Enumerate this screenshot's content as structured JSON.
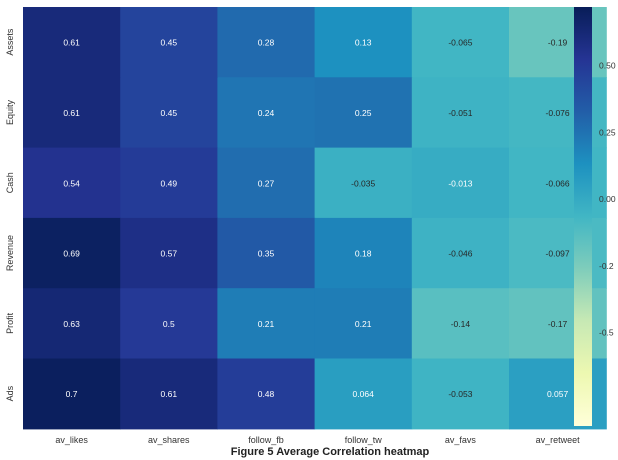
{
  "caption": "Figure 5 Average Correlation heatmap",
  "chart_data": {
    "type": "heatmap",
    "rows": [
      "Assets",
      "Equity",
      "Cash",
      "Revenue",
      "Profit",
      "Ads"
    ],
    "columns": [
      "av_likes",
      "av_shares",
      "follow_fb",
      "follow_tw",
      "av_favs",
      "av_retweet"
    ],
    "values": [
      [
        0.61,
        0.45,
        0.28,
        0.13,
        -0.065,
        -0.19
      ],
      [
        0.61,
        0.45,
        0.24,
        0.25,
        -0.051,
        -0.076
      ],
      [
        0.54,
        0.49,
        0.27,
        -0.035,
        -0.013,
        -0.066
      ],
      [
        0.69,
        0.57,
        0.35,
        0.18,
        -0.046,
        -0.097
      ],
      [
        0.63,
        0.5,
        0.21,
        0.21,
        -0.14,
        -0.17
      ],
      [
        0.7,
        0.61,
        0.48,
        0.064,
        -0.053,
        0.057
      ]
    ],
    "value_labels": [
      [
        "0.61",
        "0.45",
        "0.28",
        "0.13",
        "-0.065",
        "-0.19"
      ],
      [
        "0.61",
        "0.45",
        "0.24",
        "0.25",
        "-0.051",
        "-0.076"
      ],
      [
        "0.54",
        "0.49",
        "0.27",
        "-0.035",
        "-0.013",
        "-0.066"
      ],
      [
        "0.69",
        "0.57",
        "0.35",
        "0.18",
        "-0.046",
        "-0.097"
      ],
      [
        "0.63",
        "0.5",
        "0.21",
        "0.21",
        "-0.14",
        "-0.17"
      ],
      [
        "0.7",
        "0.61",
        "0.48",
        "0.064",
        "-0.053",
        "0.057"
      ]
    ],
    "colorbar": {
      "min": -0.85,
      "max": 0.72,
      "ticks": [
        0.5,
        0.25,
        0.0,
        -0.25,
        -0.5
      ],
      "tick_labels": [
        "0.50",
        "0.25",
        "0.00",
        "-0.2",
        "-0.5"
      ]
    },
    "colormap": "YlGnBu",
    "colormap_stops": [
      "#ffffd9",
      "#edf8b1",
      "#c7e9b4",
      "#7fcdbb",
      "#41b6c4",
      "#1d91c0",
      "#225ea8",
      "#253494",
      "#081d58"
    ],
    "title": "",
    "xlabel": "",
    "ylabel": ""
  }
}
